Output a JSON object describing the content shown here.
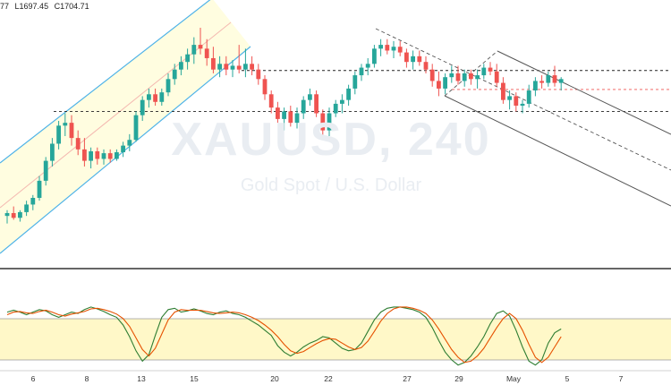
{
  "header": {
    "ohlc_partial_close": "77",
    "low_label": "L1697.45",
    "close_label": "C1704.71"
  },
  "watermark": {
    "symbol": "XAUUSD, 240",
    "description": "Gold Spot / U.S. Dollar"
  },
  "colors": {
    "bull": "#26a69a",
    "bear": "#ef5350",
    "channel_line": "#4fb3e8",
    "channel_fill": "#fffde0",
    "channel_mid": "#f4b8b0",
    "pitchfork": "#555555",
    "level_dashed": "#222222",
    "level_red": "#ef5350",
    "stoch_k": "#2e7d32",
    "stoch_d": "#e65100",
    "stoch_band": "#fff8c8"
  },
  "chart_data": [
    {
      "type": "candlestick",
      "series_source": "XAUUSD 4H",
      "x_axis_labels": [
        "6",
        "8",
        "13",
        "15",
        "20",
        "22",
        "27",
        "29",
        "May",
        "5",
        "7"
      ],
      "y_axis_labels_visible": false,
      "ylim": [
        1660,
        1790
      ],
      "horizontal_levels": [
        {
          "value": 1759.5,
          "style": "dashed",
          "color": "#222222"
        },
        {
          "value": 1749.5,
          "style": "dashed",
          "color": "#ef5350"
        },
        {
          "value": 1738.0,
          "style": "dashed",
          "color": "#222222"
        }
      ],
      "candles": [
        [
          1683.0,
          1686.0,
          1679.0,
          1684.5
        ],
        [
          1684.5,
          1688.0,
          1681.0,
          1682.0
        ],
        [
          1682.0,
          1686.0,
          1680.0,
          1685.0
        ],
        [
          1685.0,
          1691.0,
          1683.0,
          1689.0
        ],
        [
          1689.0,
          1694.0,
          1686.0,
          1692.5
        ],
        [
          1692.5,
          1704.0,
          1691.0,
          1701.5
        ],
        [
          1701.5,
          1714.0,
          1699.0,
          1712.0
        ],
        [
          1712.0,
          1724.0,
          1709.0,
          1721.0
        ],
        [
          1721.0,
          1733.0,
          1718.0,
          1730.5
        ],
        [
          1730.5,
          1737.0,
          1725.0,
          1732.0
        ],
        [
          1732.0,
          1736.0,
          1720.0,
          1724.0
        ],
        [
          1724.0,
          1728.0,
          1715.0,
          1718.0
        ],
        [
          1718.0,
          1724.0,
          1709.0,
          1712.0
        ],
        [
          1712.0,
          1719.0,
          1708.0,
          1717.0
        ],
        [
          1717.0,
          1719.0,
          1710.0,
          1713.0
        ],
        [
          1713.0,
          1718.0,
          1710.0,
          1716.0
        ],
        [
          1716.0,
          1718.0,
          1711.0,
          1713.0
        ],
        [
          1713.0,
          1718.0,
          1712.0,
          1716.5
        ],
        [
          1716.5,
          1722.0,
          1714.0,
          1720.0
        ],
        [
          1720.0,
          1726.0,
          1717.0,
          1723.0
        ],
        [
          1723.0,
          1738.0,
          1722.0,
          1736.0
        ],
        [
          1736.0,
          1746.0,
          1733.0,
          1744.0
        ],
        [
          1744.0,
          1750.0,
          1740.0,
          1747.0
        ],
        [
          1747.0,
          1750.0,
          1741.0,
          1743.0
        ],
        [
          1743.0,
          1750.0,
          1741.0,
          1748.0
        ],
        [
          1748.0,
          1758.0,
          1746.0,
          1755.0
        ],
        [
          1755.0,
          1763.0,
          1752.0,
          1760.0
        ],
        [
          1760.0,
          1767.0,
          1757.0,
          1764.0
        ],
        [
          1764.0,
          1771.0,
          1760.0,
          1768.0
        ],
        [
          1768.0,
          1777.0,
          1763.0,
          1773.0
        ],
        [
          1773.0,
          1782.0,
          1768.0,
          1771.0
        ],
        [
          1771.0,
          1776.0,
          1762.0,
          1766.0
        ],
        [
          1766.0,
          1772.0,
          1758.0,
          1760.0
        ],
        [
          1760.0,
          1767.0,
          1756.0,
          1763.0
        ],
        [
          1763.0,
          1767.0,
          1757.0,
          1760.0
        ],
        [
          1760.0,
          1765.0,
          1756.0,
          1762.0
        ],
        [
          1762.0,
          1773.0,
          1758.0,
          1760.0
        ],
        [
          1760.0,
          1771.0,
          1756.0,
          1763.0
        ],
        [
          1763.0,
          1767.0,
          1757.0,
          1760.0
        ],
        [
          1760.0,
          1763.0,
          1752.0,
          1755.0
        ],
        [
          1755.0,
          1757.0,
          1744.0,
          1747.0
        ],
        [
          1747.0,
          1749.0,
          1737.0,
          1740.0
        ],
        [
          1740.0,
          1743.0,
          1732.0,
          1734.0
        ],
        [
          1734.0,
          1740.0,
          1728.0,
          1738.0
        ],
        [
          1738.0,
          1741.0,
          1730.0,
          1732.0
        ],
        [
          1732.0,
          1740.0,
          1729.0,
          1737.0
        ],
        [
          1737.0,
          1746.0,
          1734.0,
          1744.0
        ],
        [
          1744.0,
          1750.0,
          1741.0,
          1747.0
        ],
        [
          1747.0,
          1749.0,
          1735.0,
          1737.0
        ],
        [
          1737.0,
          1739.0,
          1724.0,
          1728.0
        ],
        [
          1728.0,
          1740.0,
          1725.0,
          1737.0
        ],
        [
          1737.0,
          1744.0,
          1735.0,
          1742.0
        ],
        [
          1742.0,
          1747.0,
          1737.0,
          1744.0
        ],
        [
          1744.0,
          1752.0,
          1741.0,
          1750.0
        ],
        [
          1750.0,
          1759.0,
          1747.0,
          1757.0
        ],
        [
          1757.0,
          1763.0,
          1754.0,
          1761.0
        ],
        [
          1761.0,
          1766.0,
          1757.0,
          1763.0
        ],
        [
          1763.0,
          1773.0,
          1761.0,
          1771.0
        ],
        [
          1771.0,
          1776.0,
          1767.0,
          1773.0
        ],
        [
          1773.0,
          1776.0,
          1768.0,
          1770.0
        ],
        [
          1770.0,
          1775.0,
          1766.0,
          1772.0
        ],
        [
          1772.0,
          1775.0,
          1767.0,
          1769.0
        ],
        [
          1769.0,
          1771.0,
          1761.0,
          1764.0
        ],
        [
          1764.0,
          1770.0,
          1760.0,
          1767.0
        ],
        [
          1767.0,
          1770.0,
          1762.0,
          1764.0
        ],
        [
          1764.0,
          1767.0,
          1758.0,
          1760.0
        ],
        [
          1760.0,
          1763.0,
          1751.0,
          1754.0
        ],
        [
          1754.0,
          1759.0,
          1746.0,
          1750.0
        ],
        [
          1750.0,
          1758.0,
          1747.0,
          1756.0
        ],
        [
          1756.0,
          1762.0,
          1753.0,
          1758.0
        ],
        [
          1758.0,
          1762.0,
          1752.0,
          1754.0
        ],
        [
          1754.0,
          1760.0,
          1751.0,
          1758.0
        ],
        [
          1758.0,
          1760.0,
          1752.0,
          1755.0
        ],
        [
          1755.0,
          1760.0,
          1750.0,
          1757.0
        ],
        [
          1757.0,
          1763.0,
          1755.0,
          1761.0
        ],
        [
          1761.0,
          1764.0,
          1757.0,
          1759.0
        ],
        [
          1759.0,
          1763.0,
          1751.0,
          1753.0
        ],
        [
          1753.0,
          1756.0,
          1742.0,
          1744.0
        ],
        [
          1744.0,
          1749.0,
          1739.0,
          1746.0
        ],
        [
          1746.0,
          1748.0,
          1738.0,
          1741.0
        ],
        [
          1741.0,
          1744.0,
          1737.0,
          1742.0
        ],
        [
          1742.0,
          1752.0,
          1740.0,
          1749.0
        ],
        [
          1749.0,
          1756.0,
          1746.0,
          1754.0
        ],
        [
          1754.0,
          1757.0,
          1750.0,
          1753.0
        ],
        [
          1753.0,
          1759.0,
          1751.0,
          1757.0
        ],
        [
          1757.0,
          1762.0,
          1751.0,
          1753.0
        ],
        [
          1753.0,
          1756.0,
          1749.0,
          1755.0
        ]
      ]
    },
    {
      "type": "line",
      "indicator": "Stochastic",
      "ylim": [
        0,
        100
      ],
      "band": [
        20,
        80
      ],
      "series": [
        {
          "values": [
            88,
            91,
            88,
            84,
            88,
            92,
            90,
            84,
            80,
            84,
            88,
            86,
            92,
            96,
            93,
            89,
            84,
            80,
            68,
            50,
            28,
            12,
            22,
            52,
            80,
            92,
            94,
            88,
            90,
            93,
            90,
            86,
            84,
            88,
            90,
            86,
            84,
            80,
            74,
            68,
            60,
            52,
            36,
            26,
            20,
            26,
            34,
            40,
            44,
            50,
            48,
            40,
            32,
            28,
            30,
            40,
            58,
            76,
            88,
            94,
            96,
            96,
            94,
            92,
            88,
            80,
            64,
            44,
            26,
            14,
            6,
            10,
            20,
            34,
            50,
            70,
            86,
            90,
            82,
            60,
            34,
            12,
            6,
            14,
            40,
            56,
            62
          ]
        },
        {
          "values": [
            84,
            88,
            89,
            87,
            86,
            89,
            91,
            88,
            84,
            82,
            85,
            87,
            89,
            93,
            94,
            92,
            89,
            85,
            78,
            66,
            48,
            30,
            20,
            32,
            54,
            76,
            88,
            92,
            91,
            91,
            91,
            89,
            87,
            86,
            87,
            88,
            87,
            84,
            80,
            75,
            68,
            60,
            50,
            38,
            28,
            24,
            27,
            33,
            39,
            44,
            47,
            46,
            40,
            34,
            30,
            33,
            43,
            58,
            74,
            86,
            93,
            96,
            96,
            94,
            91,
            86,
            76,
            62,
            46,
            30,
            18,
            10,
            12,
            20,
            32,
            48,
            64,
            78,
            86,
            78,
            60,
            38,
            18,
            10,
            18,
            34,
            50
          ]
        }
      ]
    }
  ]
}
